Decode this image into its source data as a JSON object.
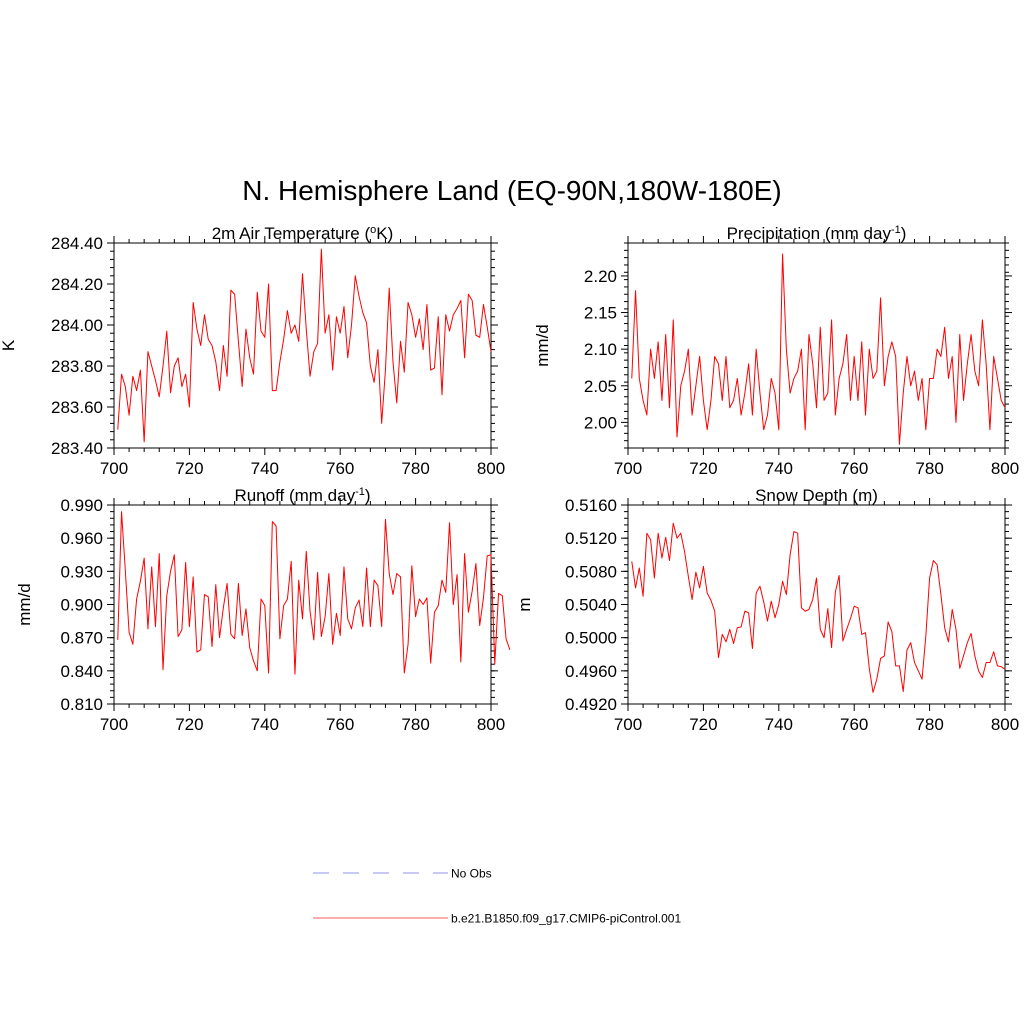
{
  "figure": {
    "title": "N. Hemisphere Land (EQ-90N,180W-180E)"
  },
  "legend": {
    "entries": [
      {
        "label": "No Obs",
        "style": "dashed",
        "color": "#a8a8f0"
      },
      {
        "label": "b.e21.B1850.f09_g17.CMIP6-piControl.001",
        "style": "solid",
        "color": "#ff7a7a"
      }
    ]
  },
  "colors": {
    "series": "#ff0000",
    "axis": "#000000"
  },
  "chart_data": [
    {
      "type": "line",
      "title_main": "2m Air Temperature (",
      "title_sup": "o",
      "title_end": "K)",
      "xlabel": "",
      "ylabel": "K",
      "xlim": [
        700,
        800
      ],
      "ylim": [
        283.4,
        284.4
      ],
      "xticks": [
        700,
        720,
        740,
        760,
        780,
        800
      ],
      "xticklabels": [
        "700",
        "720",
        "740",
        "760",
        "780",
        "800"
      ],
      "yticks": [
        283.4,
        283.6,
        283.8,
        284.0,
        284.2,
        284.4
      ],
      "yticklabels": [
        "283.40",
        "283.60",
        "283.80",
        "284.00",
        "284.20",
        "284.40"
      ],
      "yminor_step": 0.04,
      "series": [
        {
          "name": "b.e21.B1850.f09_g17.CMIP6-piControl.001",
          "x_start": 701,
          "x_step": 1,
          "values": [
            283.49,
            283.76,
            283.7,
            283.56,
            283.75,
            283.68,
            283.78,
            283.43,
            283.87,
            283.8,
            283.73,
            283.65,
            283.8,
            283.97,
            283.67,
            283.8,
            283.84,
            283.7,
            283.76,
            283.6,
            284.11,
            283.98,
            283.9,
            284.05,
            283.93,
            283.9,
            283.82,
            283.68,
            283.9,
            283.75,
            284.17,
            284.15,
            283.92,
            283.7,
            283.98,
            283.84,
            283.76,
            284.16,
            283.97,
            283.94,
            284.2,
            283.68,
            283.68,
            283.82,
            283.93,
            284.07,
            283.96,
            284.0,
            283.92,
            284.25,
            283.98,
            283.75,
            283.87,
            283.91,
            284.37,
            283.96,
            284.05,
            283.78,
            284.04,
            283.96,
            284.09,
            283.84,
            284.0,
            284.24,
            284.14,
            284.06,
            284.01,
            283.8,
            283.72,
            283.88,
            283.52,
            283.78,
            284.18,
            283.82,
            283.62,
            283.92,
            283.77,
            284.11,
            284.05,
            283.94,
            284.03,
            283.88,
            284.1,
            283.78,
            283.79,
            284.04,
            283.66,
            284.05,
            283.97,
            284.05,
            284.08,
            284.12,
            283.84,
            284.15,
            284.12,
            283.95,
            283.94,
            284.1,
            283.99,
            283.87
          ]
        }
      ]
    },
    {
      "type": "line",
      "title_main": "Precipitation (mm day",
      "title_sup": "-1",
      "title_end": ")",
      "xlabel": "",
      "ylabel": "mm/d",
      "xlim": [
        700,
        800
      ],
      "ylim": [
        1.965,
        2.245
      ],
      "xticks": [
        700,
        720,
        740,
        760,
        780,
        800
      ],
      "xticklabels": [
        "700",
        "720",
        "740",
        "760",
        "780",
        "800"
      ],
      "yticks": [
        2.0,
        2.05,
        2.1,
        2.15,
        2.2
      ],
      "yticklabels": [
        "2.00",
        "2.05",
        "2.10",
        "2.15",
        "2.20"
      ],
      "yminor_step": 0.01,
      "series": [
        {
          "name": "b.e21.B1850.f09_g17.CMIP6-piControl.001",
          "x_start": 701,
          "x_step": 1,
          "values": [
            2.06,
            2.18,
            2.06,
            2.03,
            2.01,
            2.1,
            2.06,
            2.11,
            2.03,
            2.12,
            2.02,
            2.14,
            1.98,
            2.05,
            2.07,
            2.1,
            2.01,
            2.05,
            2.09,
            2.03,
            1.99,
            2.03,
            2.09,
            2.08,
            2.03,
            2.09,
            2.02,
            2.03,
            2.06,
            2.01,
            2.04,
            2.08,
            2.01,
            2.1,
            2.04,
            1.99,
            2.01,
            2.06,
            2.04,
            1.99,
            2.23,
            2.1,
            2.04,
            2.06,
            2.07,
            2.1,
            1.99,
            2.12,
            2.08,
            2.02,
            2.13,
            2.03,
            2.04,
            2.14,
            2.01,
            2.06,
            2.08,
            2.12,
            2.03,
            2.09,
            2.03,
            2.11,
            2.01,
            2.1,
            2.06,
            2.07,
            2.17,
            2.05,
            2.09,
            2.11,
            2.09,
            1.97,
            2.04,
            2.09,
            2.05,
            2.07,
            2.03,
            2.06,
            1.99,
            2.06,
            2.06,
            2.1,
            2.09,
            2.13,
            2.06,
            2.09,
            2.0,
            2.12,
            2.03,
            2.08,
            2.12,
            2.07,
            2.05,
            2.14,
            2.08,
            1.99,
            2.09,
            2.06,
            2.03,
            2.02
          ]
        }
      ]
    },
    {
      "type": "line",
      "title_main": "Runoff (mm day",
      "title_sup": "-1",
      "title_end": ")",
      "xlabel": "",
      "ylabel": "mm/d",
      "xlim": [
        700,
        800
      ],
      "ylim": [
        0.81,
        0.99
      ],
      "xticks": [
        700,
        720,
        740,
        760,
        780,
        800
      ],
      "xticklabels": [
        "700",
        "720",
        "740",
        "760",
        "780",
        "800"
      ],
      "yticks": [
        0.81,
        0.84,
        0.87,
        0.9,
        0.93,
        0.96,
        0.99
      ],
      "yticklabels": [
        "0.810",
        "0.840",
        "0.870",
        "0.900",
        "0.930",
        "0.960",
        "0.990"
      ],
      "yminor_step": 0.006,
      "series": [
        {
          "name": "b.e21.B1850.f09_g17.CMIP6-piControl.001",
          "x_start": 701,
          "x_step": 1,
          "values": [
            0.868,
            0.984,
            0.931,
            0.875,
            0.864,
            0.905,
            0.921,
            0.942,
            0.878,
            0.934,
            0.88,
            0.946,
            0.841,
            0.908,
            0.93,
            0.945,
            0.871,
            0.877,
            0.938,
            0.88,
            0.925,
            0.857,
            0.859,
            0.909,
            0.907,
            0.862,
            0.918,
            0.87,
            0.897,
            0.919,
            0.873,
            0.869,
            0.919,
            0.872,
            0.896,
            0.861,
            0.849,
            0.84,
            0.905,
            0.899,
            0.838,
            0.975,
            0.971,
            0.869,
            0.899,
            0.905,
            0.939,
            0.837,
            0.922,
            0.887,
            0.948,
            0.894,
            0.868,
            0.929,
            0.871,
            0.889,
            0.928,
            0.864,
            0.892,
            0.872,
            0.934,
            0.887,
            0.878,
            0.897,
            0.904,
            0.88,
            0.933,
            0.88,
            0.922,
            0.917,
            0.88,
            0.977,
            0.928,
            0.909,
            0.928,
            0.925,
            0.838,
            0.864,
            0.935,
            0.889,
            0.905,
            0.9,
            0.906,
            0.847,
            0.893,
            0.899,
            0.922,
            0.911,
            0.974,
            0.9,
            0.927,
            0.848,
            0.946,
            0.893,
            0.912,
            0.937,
            0.881,
            0.906,
            0.944,
            0.945,
            0.846,
            0.91,
            0.908,
            0.869,
            0.859
          ]
        }
      ]
    },
    {
      "type": "line",
      "title_main": "Snow Depth (m)",
      "title_sup": "",
      "title_end": "",
      "xlabel": "",
      "ylabel": "m",
      "xlim": [
        700,
        800
      ],
      "ylim": [
        0.492,
        0.516
      ],
      "xticks": [
        700,
        720,
        740,
        760,
        780,
        800
      ],
      "xticklabels": [
        "700",
        "720",
        "740",
        "760",
        "780",
        "800"
      ],
      "yticks": [
        0.492,
        0.496,
        0.5,
        0.504,
        0.508,
        0.512,
        0.516
      ],
      "yticklabels": [
        "0.4920",
        "0.4960",
        "0.5000",
        "0.5040",
        "0.5080",
        "0.5120",
        "0.5160"
      ],
      "yminor_step": 0.0008,
      "series": [
        {
          "name": "b.e21.B1850.f09_g17.CMIP6-piControl.001",
          "x_start": 701,
          "x_step": 1,
          "values": [
            0.5092,
            0.506,
            0.5084,
            0.505,
            0.5126,
            0.5118,
            0.5072,
            0.5126,
            0.5096,
            0.5121,
            0.5093,
            0.5138,
            0.512,
            0.5126,
            0.5104,
            0.5074,
            0.5046,
            0.5079,
            0.506,
            0.5086,
            0.5054,
            0.5045,
            0.5032,
            0.4976,
            0.5004,
            0.4995,
            0.501,
            0.4993,
            0.5012,
            0.5013,
            0.5032,
            0.503,
            0.4987,
            0.5054,
            0.5062,
            0.5043,
            0.502,
            0.5044,
            0.5024,
            0.504,
            0.5068,
            0.5052,
            0.51,
            0.5128,
            0.5126,
            0.5036,
            0.5032,
            0.5034,
            0.5046,
            0.5072,
            0.501,
            0.5,
            0.5035,
            0.4988,
            0.5055,
            0.5075,
            0.4996,
            0.501,
            0.5023,
            0.5038,
            0.5036,
            0.5004,
            0.5006,
            0.4963,
            0.4934,
            0.495,
            0.4975,
            0.4978,
            0.5019,
            0.5007,
            0.4966,
            0.4966,
            0.4935,
            0.4985,
            0.4994,
            0.497,
            0.496,
            0.495,
            0.5002,
            0.5072,
            0.5093,
            0.5088,
            0.5052,
            0.5012,
            0.4995,
            0.5034,
            0.501,
            0.4963,
            0.4978,
            0.4994,
            0.5005,
            0.4978,
            0.496,
            0.4952,
            0.497,
            0.497,
            0.4983,
            0.4966,
            0.4965,
            0.4962
          ]
        }
      ]
    }
  ]
}
